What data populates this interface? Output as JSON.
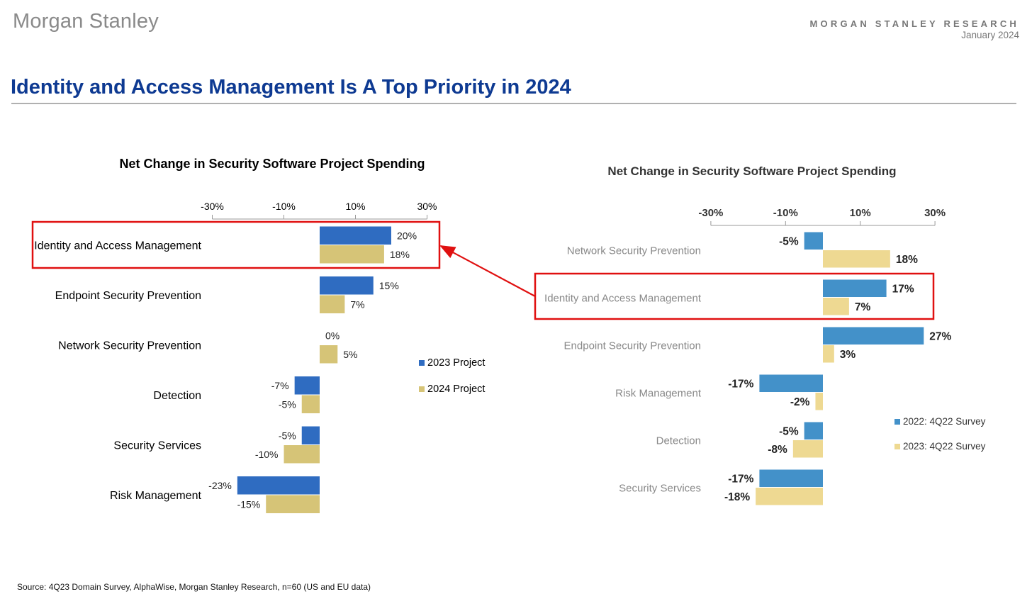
{
  "header": {
    "logo": "Morgan Stanley",
    "research_label": "MORGAN STANLEY RESEARCH",
    "date": "January 2024"
  },
  "page_title": "Identity and Access Management Is A Top Priority in 2024",
  "source": "Source: 4Q23 Domain Survey, AlphaWise, Morgan Stanley Research, n=60 (US and EU data)",
  "colors": {
    "left_2023": "#2f6cc1",
    "left_2024": "#d6c477",
    "right_2022": "#4391c9",
    "right_2023": "#eed992",
    "highlight": "#e01010",
    "title": "#0e3a92"
  },
  "chart_data": [
    {
      "type": "bar",
      "orientation": "horizontal",
      "title": "Net Change in Security Software Project Spending",
      "categories": [
        "Identity and Access Management",
        "Endpoint Security Prevention",
        "Network Security Prevention",
        "Detection",
        "Security Services",
        "Risk Management"
      ],
      "series": [
        {
          "name": "2023 Project",
          "values": [
            20,
            15,
            0,
            -7,
            -5,
            -23
          ],
          "labels": [
            "20%",
            "15%",
            "0%",
            "-7%",
            "-5%",
            "-23%"
          ]
        },
        {
          "name": "2024 Project",
          "values": [
            18,
            7,
            5,
            -5,
            -10,
            -15
          ],
          "labels": [
            "18%",
            "7%",
            "5%",
            "-5%",
            "-10%",
            "-15%"
          ]
        }
      ],
      "xlim": [
        -30,
        30
      ],
      "xticks": [
        "-30%",
        "-10%",
        "10%",
        "30%"
      ],
      "xtick_values": [
        -30,
        -10,
        10,
        30
      ],
      "legend_position": "right",
      "highlight_category": "Identity and Access Management"
    },
    {
      "type": "bar",
      "orientation": "horizontal",
      "title": "Net Change in Security Software Project Spending",
      "categories": [
        "Network Security Prevention",
        "Identity and Access Management",
        "Endpoint Security Prevention",
        "Risk Management",
        "Detection",
        "Security Services"
      ],
      "series": [
        {
          "name": "2022: 4Q22 Survey",
          "values": [
            -5,
            17,
            27,
            -17,
            -5,
            -17
          ],
          "labels": [
            "-5%",
            "17%",
            "27%",
            "-17%",
            "-5%",
            "-17%"
          ]
        },
        {
          "name": "2023: 4Q22 Survey",
          "values": [
            18,
            7,
            3,
            -2,
            -8,
            -18
          ],
          "labels": [
            "18%",
            "7%",
            "3%",
            "-2%",
            "-8%",
            "-18%"
          ]
        }
      ],
      "xlim": [
        -30,
        30
      ],
      "xticks": [
        "-30%",
        "-10%",
        "10%",
        "30%"
      ],
      "xtick_values": [
        -30,
        -10,
        10,
        30
      ],
      "legend_position": "bottom-right",
      "highlight_category": "Identity and Access Management"
    }
  ]
}
